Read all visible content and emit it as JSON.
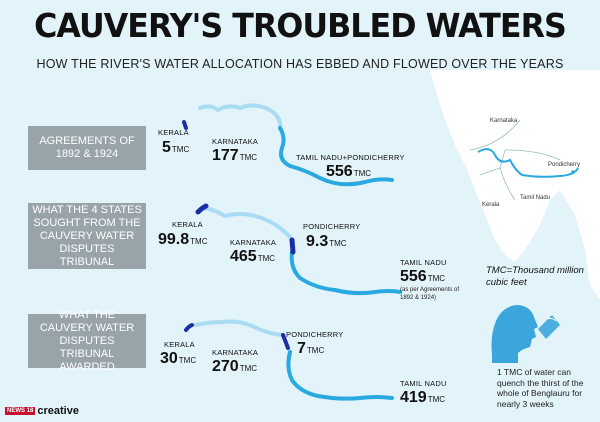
{
  "title": "CAUVERY'S TROUBLED WATERS",
  "subtitle": "HOW THE RIVER'S WATER ALLOCATION HAS EBBED AND FLOWED OVER THE YEARS",
  "unit": "TMC",
  "sections": [
    {
      "label": "AGREEMENTS OF 1892 & 1924",
      "kerala": {
        "name": "KERALA",
        "value": "5"
      },
      "karnataka": {
        "name": "KARNATAKA",
        "value": "177"
      },
      "tamilnadu": {
        "name": "TAMIL NADU+PONDICHERRY",
        "value": "556"
      }
    },
    {
      "label": "WHAT THE 4 STATES SOUGHT FROM THE CAUVERY WATER DISPUTES TRIBUNAL",
      "kerala": {
        "name": "KERALA",
        "value": "99.8"
      },
      "karnataka": {
        "name": "KARNATAKA",
        "value": "465"
      },
      "pondicherry": {
        "name": "PONDICHERRY",
        "value": "9.3"
      },
      "tamilnadu": {
        "name": "TAMIL NADU",
        "value": "556",
        "note": "(as per Agreements of 1892 & 1924)"
      }
    },
    {
      "label": "WHAT THE CAUVERY WATER DISPUTES TRIBUNAL AWARDED",
      "kerala": {
        "name": "KERALA",
        "value": "30"
      },
      "karnataka": {
        "name": "KARNATAKA",
        "value": "270"
      },
      "pondicherry": {
        "name": "PONDICHERRY",
        "value": "7"
      },
      "tamilnadu": {
        "name": "TAMIL NADU",
        "value": "419"
      }
    }
  ],
  "map_labels": {
    "karnataka": "Karnataka",
    "kerala": "Kerala",
    "tamilnadu": "Tamil Nadu",
    "pondicherry": "Pondicherry"
  },
  "tmc_definition": "TMC=Thousand million cubic feet",
  "quench_note": "1 TMC of water can quench the thirst of the whole of Benglauru for nearly 3 weeks",
  "brand": {
    "badge": "NEWS 18",
    "name": "creative"
  },
  "colors": {
    "river_light": "#a9dcf2",
    "river_mid": "#2aa9e0",
    "river_dark": "#1b2ea5",
    "label_box": "#98a3aa",
    "map_land": "#ffffff",
    "background": "#e2f3fa",
    "icon": "#3aa6dc"
  }
}
